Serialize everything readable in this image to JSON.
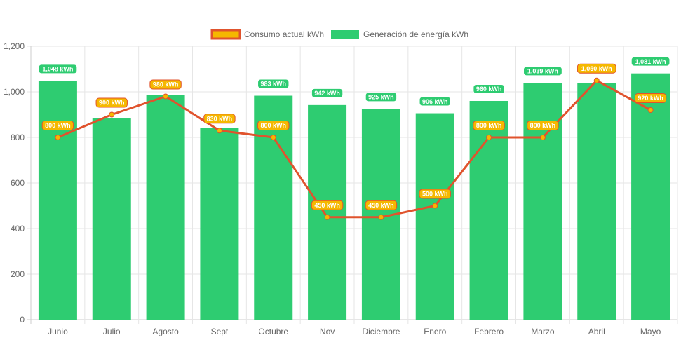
{
  "chart_data": {
    "type": "bar",
    "categories": [
      "Junio",
      "Julio",
      "Agosto",
      "Sept",
      "Octubre",
      "Nov",
      "Diciembre",
      "Enero",
      "Febrero",
      "Marzo",
      "Abril",
      "Mayo"
    ],
    "ylim": [
      0,
      1200
    ],
    "yticks": [
      0,
      200,
      400,
      600,
      800,
      1000,
      1200
    ],
    "ytick_labels": [
      "0",
      "200",
      "400",
      "600",
      "800",
      "1,000",
      "1,200"
    ],
    "grid": true,
    "legend_position": "top-center",
    "series": [
      {
        "name": "Consumo actual kWh",
        "type": "line",
        "values": [
          800,
          900,
          980,
          830,
          800,
          450,
          450,
          500,
          800,
          800,
          1050,
          920
        ],
        "data_labels": [
          "800 kWh",
          "900 kWh",
          "980 kWh",
          "830 kWh",
          "800 kWh",
          "450 kWh",
          "450 kWh",
          "500 kWh",
          "800 kWh",
          "800 kWh",
          "1,050 kWh",
          "920 kWh"
        ],
        "color": "#e0532d",
        "label_color": "#f5b800"
      },
      {
        "name": "Generación de energía kWh",
        "type": "bar",
        "values": [
          1048,
          883,
          987,
          840,
          983,
          942,
          925,
          906,
          960,
          1039,
          1038,
          1081
        ],
        "data_labels": [
          "1,048 kWh",
          "",
          "",
          "",
          "983 kWh",
          "942 kWh",
          "925 kWh",
          "906 kWh",
          "960 kWh",
          "1,039 kWh",
          "",
          "1,081 kWh"
        ],
        "color": "#2ecc71"
      }
    ]
  }
}
